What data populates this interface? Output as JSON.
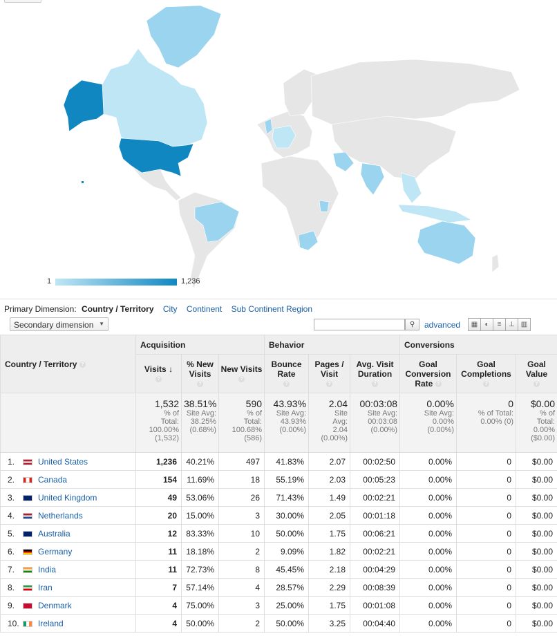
{
  "legend": {
    "min": "1",
    "max": "1,236"
  },
  "dimension": {
    "label": "Primary Dimension:",
    "current": "Country / Territory",
    "options": [
      "City",
      "Continent",
      "Sub Continent Region"
    ]
  },
  "toolbar": {
    "secondary_label": "Secondary dimension",
    "search_placeholder": "",
    "advanced_label": "advanced"
  },
  "table": {
    "groups": {
      "acquisition": "Acquisition",
      "behavior": "Behavior",
      "conversions": "Conversions"
    },
    "columns": {
      "country": "Country / Territory",
      "visits": "Visits",
      "new_visits_pct": "% New Visits",
      "new_visits": "New Visits",
      "bounce": "Bounce Rate",
      "pages": "Pages / Visit",
      "duration": "Avg. Visit Duration",
      "goal_rate": "Goal Conversion Rate",
      "goal_comp": "Goal Completions",
      "goal_value": "Goal Value"
    },
    "totals": {
      "visits": {
        "v": "1,532",
        "s1": "% of",
        "s2": "Total:",
        "s3": "100.00%",
        "s4": "(1,532)"
      },
      "new_pct": {
        "v": "38.51%",
        "s1": "Site Avg:",
        "s2": "38.25%",
        "s3": "(0.68%)"
      },
      "new_visits": {
        "v": "590",
        "s1": "% of",
        "s2": "Total:",
        "s3": "100.68%",
        "s4": "(586)"
      },
      "bounce": {
        "v": "43.93%",
        "s1": "Site Avg:",
        "s2": "43.93%",
        "s3": "(0.00%)"
      },
      "pages": {
        "v": "2.04",
        "s1": "Site",
        "s2": "Avg:",
        "s3": "2.04",
        "s4": "(0.00%)"
      },
      "duration": {
        "v": "00:03:08",
        "s1": "Site Avg:",
        "s2": "00:03:08",
        "s3": "(0.00%)"
      },
      "goal_rate": {
        "v": "0.00%",
        "s1": "Site Avg:",
        "s2": "0.00%",
        "s3": "(0.00%)"
      },
      "goal_comp": {
        "v": "0",
        "s1": "% of Total:",
        "s2": "0.00% (0)"
      },
      "goal_value": {
        "v": "$0.00",
        "s1": "% of",
        "s2": "Total:",
        "s3": "0.00%",
        "s4": "($0.00)"
      }
    },
    "rows": [
      {
        "idx": "1.",
        "flag": "us-flag",
        "country": "United States",
        "visits": "1,236",
        "new_pct": "40.21%",
        "new_visits": "497",
        "bounce": "41.83%",
        "pages": "2.07",
        "duration": "00:02:50",
        "goal_rate": "0.00%",
        "goal_comp": "0",
        "goal_value": "$0.00"
      },
      {
        "idx": "2.",
        "flag": "ca-flag",
        "country": "Canada",
        "visits": "154",
        "new_pct": "11.69%",
        "new_visits": "18",
        "bounce": "55.19%",
        "pages": "2.03",
        "duration": "00:05:23",
        "goal_rate": "0.00%",
        "goal_comp": "0",
        "goal_value": "$0.00"
      },
      {
        "idx": "3.",
        "flag": "gb-flag",
        "country": "United Kingdom",
        "visits": "49",
        "new_pct": "53.06%",
        "new_visits": "26",
        "bounce": "71.43%",
        "pages": "1.49",
        "duration": "00:02:21",
        "goal_rate": "0.00%",
        "goal_comp": "0",
        "goal_value": "$0.00"
      },
      {
        "idx": "4.",
        "flag": "nl-flag",
        "country": "Netherlands",
        "visits": "20",
        "new_pct": "15.00%",
        "new_visits": "3",
        "bounce": "30.00%",
        "pages": "2.05",
        "duration": "00:01:18",
        "goal_rate": "0.00%",
        "goal_comp": "0",
        "goal_value": "$0.00"
      },
      {
        "idx": "5.",
        "flag": "au-flag",
        "country": "Australia",
        "visits": "12",
        "new_pct": "83.33%",
        "new_visits": "10",
        "bounce": "50.00%",
        "pages": "1.75",
        "duration": "00:06:21",
        "goal_rate": "0.00%",
        "goal_comp": "0",
        "goal_value": "$0.00"
      },
      {
        "idx": "6.",
        "flag": "de-flag",
        "country": "Germany",
        "visits": "11",
        "new_pct": "18.18%",
        "new_visits": "2",
        "bounce": "9.09%",
        "pages": "1.82",
        "duration": "00:02:21",
        "goal_rate": "0.00%",
        "goal_comp": "0",
        "goal_value": "$0.00"
      },
      {
        "idx": "7.",
        "flag": "in-flag",
        "country": "India",
        "visits": "11",
        "new_pct": "72.73%",
        "new_visits": "8",
        "bounce": "45.45%",
        "pages": "2.18",
        "duration": "00:04:29",
        "goal_rate": "0.00%",
        "goal_comp": "0",
        "goal_value": "$0.00"
      },
      {
        "idx": "8.",
        "flag": "ir-flag",
        "country": "Iran",
        "visits": "7",
        "new_pct": "57.14%",
        "new_visits": "4",
        "bounce": "28.57%",
        "pages": "2.29",
        "duration": "00:08:39",
        "goal_rate": "0.00%",
        "goal_comp": "0",
        "goal_value": "$0.00"
      },
      {
        "idx": "9.",
        "flag": "dk-flag",
        "country": "Denmark",
        "visits": "4",
        "new_pct": "75.00%",
        "new_visits": "3",
        "bounce": "25.00%",
        "pages": "1.75",
        "duration": "00:01:08",
        "goal_rate": "0.00%",
        "goal_comp": "0",
        "goal_value": "$0.00"
      },
      {
        "idx": "10.",
        "flag": "ie-flag",
        "country": "Ireland",
        "visits": "4",
        "new_pct": "50.00%",
        "new_visits": "2",
        "bounce": "50.00%",
        "pages": "3.25",
        "duration": "00:04:40",
        "goal_rate": "0.00%",
        "goal_comp": "0",
        "goal_value": "$0.00"
      }
    ]
  },
  "colors": {
    "map_max": "#1187c2",
    "map_min": "#bfe6f5",
    "map_none": "#e6e6e6",
    "link": "#1a5fa8"
  }
}
